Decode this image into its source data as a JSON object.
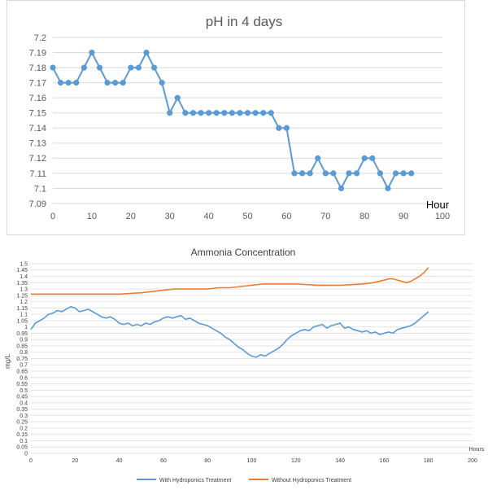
{
  "colors": {
    "blue": "#5b9bd5",
    "orange": "#ed7d31",
    "grid": "#d9d9d9",
    "axis_text": "#595959",
    "title": "#595959"
  },
  "chart_data": [
    {
      "type": "line",
      "title": "pH in 4 days",
      "xlabel": "Hour",
      "ylabel": "",
      "xlim": [
        0,
        100
      ],
      "ylim": [
        7.09,
        7.2
      ],
      "grid": true,
      "markers": true,
      "x_ticks": [
        "0",
        "10",
        "20",
        "30",
        "40",
        "50",
        "60",
        "70",
        "80",
        "90",
        "100"
      ],
      "y_ticks": [
        "7.09",
        "7.1",
        "7.11",
        "7.12",
        "7.13",
        "7.14",
        "7.15",
        "7.16",
        "7.17",
        "7.18",
        "7.19",
        "7.2"
      ],
      "series": [
        {
          "color": "#5b9bd5",
          "x": [
            0,
            2,
            4,
            6,
            8,
            10,
            12,
            14,
            16,
            18,
            20,
            22,
            24,
            26,
            28,
            30,
            32,
            34,
            36,
            38,
            40,
            42,
            44,
            46,
            48,
            50,
            52,
            54,
            56,
            58,
            60,
            62,
            64,
            66,
            68,
            70,
            72,
            74,
            76,
            78,
            80,
            82,
            84,
            86,
            88,
            90,
            92
          ],
          "values": [
            7.18,
            7.17,
            7.17,
            7.17,
            7.18,
            7.19,
            7.18,
            7.17,
            7.17,
            7.17,
            7.18,
            7.18,
            7.19,
            7.18,
            7.17,
            7.15,
            7.16,
            7.15,
            7.15,
            7.15,
            7.15,
            7.15,
            7.15,
            7.15,
            7.15,
            7.15,
            7.15,
            7.15,
            7.15,
            7.14,
            7.14,
            7.11,
            7.11,
            7.11,
            7.12,
            7.11,
            7.11,
            7.1,
            7.11,
            7.11,
            7.12,
            7.12,
            7.11,
            7.1,
            7.11,
            7.11,
            7.11
          ]
        }
      ]
    },
    {
      "type": "line",
      "title": "Ammonia Concentration",
      "xlabel": "Hours",
      "ylabel": "mg/L",
      "xlim": [
        0,
        200
      ],
      "ylim": [
        0,
        1.5
      ],
      "grid": true,
      "legend": "bottom",
      "x_ticks": [
        "0",
        "20",
        "40",
        "60",
        "80",
        "100",
        "120",
        "140",
        "160",
        "180",
        "200"
      ],
      "y_ticks": [
        "0",
        "0.05",
        "0.1",
        "0.15",
        "0.2",
        "0.25",
        "0.3",
        "0.35",
        "0.4",
        "0.45",
        "0.5",
        "0.55",
        "0.6",
        "0.65",
        "0.7",
        "0.75",
        "0.8",
        "0.85",
        "0.9",
        "0.95",
        "1",
        "1.05",
        "1.1",
        "1.15",
        "1.2",
        "1.25",
        "1.3",
        "1.35",
        "1.4",
        "1.45",
        "1.5"
      ],
      "series": [
        {
          "name": "With Hydroponics Treatment",
          "color": "#5b9bd5",
          "x": [
            0,
            2,
            4,
            6,
            8,
            10,
            12,
            14,
            16,
            18,
            20,
            22,
            24,
            26,
            28,
            30,
            32,
            34,
            36,
            38,
            40,
            42,
            44,
            46,
            48,
            50,
            52,
            54,
            56,
            58,
            60,
            62,
            64,
            66,
            68,
            70,
            72,
            74,
            76,
            78,
            80,
            82,
            84,
            86,
            88,
            90,
            92,
            94,
            96,
            98,
            100,
            102,
            104,
            106,
            108,
            110,
            112,
            114,
            116,
            118,
            120,
            122,
            124,
            126,
            128,
            130,
            132,
            134,
            136,
            138,
            140,
            142,
            144,
            146,
            148,
            150,
            152,
            154,
            156,
            158,
            160,
            162,
            164,
            166,
            168,
            170,
            172,
            174,
            176,
            178,
            180
          ],
          "values": [
            0.98,
            1.03,
            1.05,
            1.07,
            1.1,
            1.11,
            1.13,
            1.12,
            1.14,
            1.16,
            1.15,
            1.12,
            1.13,
            1.14,
            1.12,
            1.1,
            1.08,
            1.07,
            1.08,
            1.06,
            1.03,
            1.02,
            1.03,
            1.01,
            1.02,
            1.01,
            1.03,
            1.02,
            1.04,
            1.05,
            1.07,
            1.08,
            1.07,
            1.08,
            1.09,
            1.06,
            1.07,
            1.05,
            1.03,
            1.02,
            1.01,
            0.99,
            0.97,
            0.95,
            0.92,
            0.9,
            0.87,
            0.84,
            0.82,
            0.79,
            0.77,
            0.76,
            0.78,
            0.77,
            0.79,
            0.81,
            0.83,
            0.86,
            0.9,
            0.93,
            0.95,
            0.97,
            0.98,
            0.97,
            1.0,
            1.01,
            1.02,
            0.99,
            1.01,
            1.02,
            1.03,
            0.99,
            1.0,
            0.98,
            0.97,
            0.96,
            0.97,
            0.95,
            0.96,
            0.94,
            0.95,
            0.96,
            0.95,
            0.98,
            0.99,
            1.0,
            1.01,
            1.03,
            1.06,
            1.09,
            1.12
          ]
        },
        {
          "name": "Without Hydroponics Treatment",
          "color": "#ed7d31",
          "x": [
            0,
            10,
            20,
            30,
            40,
            50,
            55,
            60,
            65,
            70,
            80,
            85,
            90,
            95,
            100,
            105,
            110,
            120,
            130,
            135,
            140,
            150,
            155,
            160,
            162,
            164,
            166,
            168,
            170,
            172,
            174,
            176,
            178,
            180
          ],
          "values": [
            1.26,
            1.26,
            1.26,
            1.26,
            1.26,
            1.27,
            1.28,
            1.29,
            1.3,
            1.3,
            1.3,
            1.31,
            1.31,
            1.32,
            1.33,
            1.34,
            1.34,
            1.34,
            1.33,
            1.33,
            1.33,
            1.34,
            1.35,
            1.37,
            1.38,
            1.38,
            1.37,
            1.36,
            1.35,
            1.36,
            1.38,
            1.4,
            1.43,
            1.47
          ]
        }
      ]
    }
  ]
}
